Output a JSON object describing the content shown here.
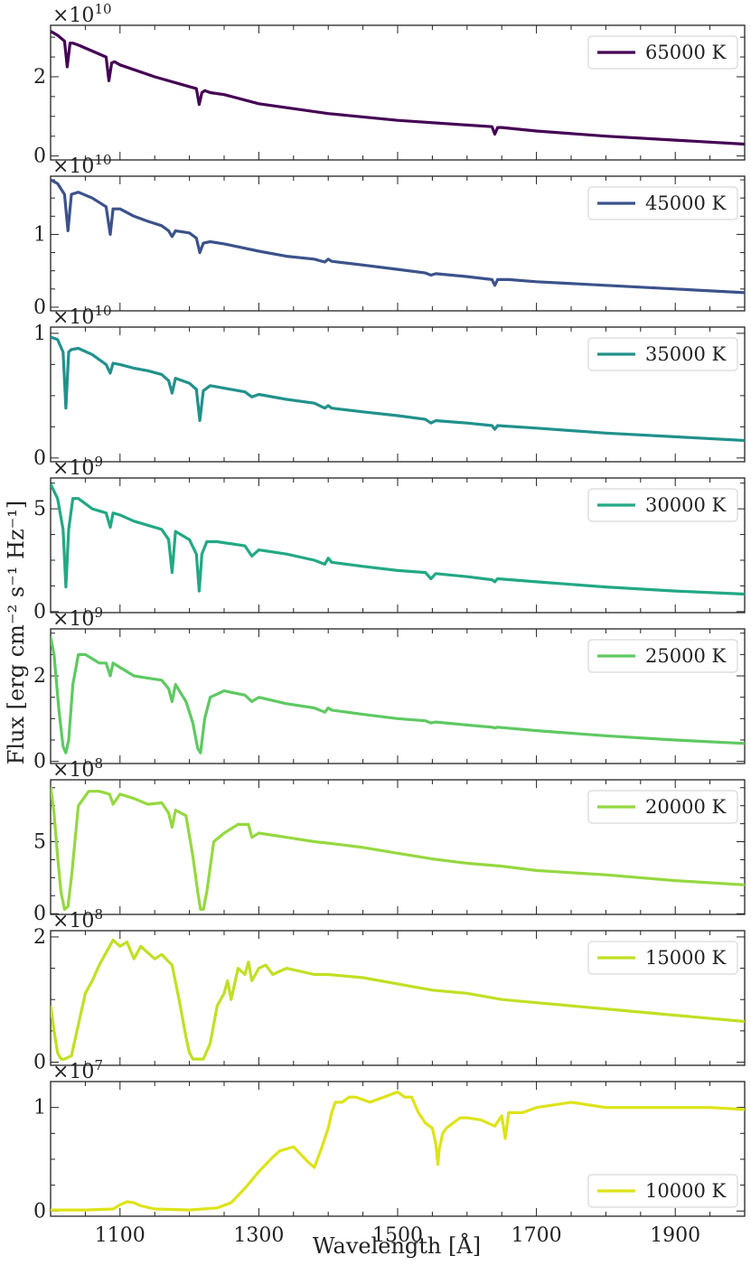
{
  "figure": {
    "xlabel": "Wavelength [Å]",
    "ylabel": "Flux [erg cm⁻² s⁻¹ Hz⁻¹]",
    "xlim": [
      1000,
      2000
    ],
    "xticks": [
      1100,
      1300,
      1500,
      1700,
      1900
    ],
    "legend_position": "upper right (bottom panel: lower right)"
  },
  "chart_data": [
    {
      "type": "line",
      "series": [
        {
          "name": "65000 K",
          "color": "#440154"
        }
      ],
      "ylim": [
        -0.1,
        3.3
      ],
      "yticks": [
        0,
        2
      ],
      "offset_text": "×10^10",
      "exp": "10",
      "legend_loc": "upper right",
      "x": [
        1000,
        1010,
        1020,
        1024,
        1028,
        1032,
        1040,
        1060,
        1080,
        1084,
        1088,
        1092,
        1100,
        1150,
        1200,
        1210,
        1214,
        1218,
        1222,
        1230,
        1250,
        1300,
        1400,
        1500,
        1600,
        1636,
        1640,
        1644,
        1650,
        1700,
        1800,
        1900,
        2000
      ],
      "values": [
        3.15,
        3.05,
        2.9,
        2.25,
        2.85,
        2.85,
        2.8,
        2.65,
        2.5,
        1.9,
        2.35,
        2.38,
        2.3,
        2.0,
        1.75,
        1.7,
        1.3,
        1.6,
        1.65,
        1.6,
        1.55,
        1.32,
        1.07,
        0.9,
        0.78,
        0.74,
        0.55,
        0.72,
        0.72,
        0.63,
        0.5,
        0.4,
        0.3
      ]
    },
    {
      "type": "line",
      "series": [
        {
          "name": "45000 K",
          "color": "#3b528b"
        }
      ],
      "ylim": [
        -0.05,
        1.8
      ],
      "yticks": [
        0,
        1
      ],
      "offset_text": "×10^10",
      "exp": "10",
      "legend_loc": "upper right",
      "x": [
        1000,
        1010,
        1020,
        1025,
        1030,
        1040,
        1060,
        1080,
        1086,
        1090,
        1100,
        1120,
        1140,
        1160,
        1170,
        1175,
        1180,
        1200,
        1210,
        1215,
        1220,
        1230,
        1250,
        1300,
        1340,
        1380,
        1395,
        1400,
        1405,
        1450,
        1500,
        1540,
        1548,
        1555,
        1600,
        1636,
        1640,
        1644,
        1660,
        1700,
        1800,
        1900,
        2000
      ],
      "values": [
        1.75,
        1.7,
        1.55,
        1.05,
        1.55,
        1.58,
        1.5,
        1.38,
        1.0,
        1.35,
        1.35,
        1.25,
        1.18,
        1.12,
        1.05,
        0.97,
        1.05,
        1.02,
        0.95,
        0.75,
        0.88,
        0.9,
        0.87,
        0.77,
        0.7,
        0.66,
        0.62,
        0.66,
        0.63,
        0.58,
        0.52,
        0.47,
        0.44,
        0.46,
        0.42,
        0.38,
        0.3,
        0.38,
        0.38,
        0.35,
        0.3,
        0.25,
        0.2
      ]
    },
    {
      "type": "line",
      "series": [
        {
          "name": "35000 K",
          "color": "#21918c"
        }
      ],
      "ylim": [
        -0.03,
        1.05
      ],
      "yticks": [
        0,
        1
      ],
      "offset_text": "×10^10",
      "exp": "10",
      "legend_loc": "upper right",
      "x": [
        1000,
        1010,
        1018,
        1022,
        1026,
        1030,
        1040,
        1060,
        1080,
        1086,
        1090,
        1100,
        1120,
        1140,
        1160,
        1170,
        1175,
        1180,
        1200,
        1210,
        1215,
        1220,
        1230,
        1250,
        1280,
        1290,
        1300,
        1340,
        1380,
        1395,
        1400,
        1405,
        1450,
        1500,
        1540,
        1548,
        1555,
        1600,
        1636,
        1640,
        1644,
        1700,
        1800,
        1900,
        2000
      ],
      "values": [
        0.97,
        0.95,
        0.85,
        0.4,
        0.85,
        0.87,
        0.88,
        0.83,
        0.75,
        0.68,
        0.76,
        0.75,
        0.72,
        0.7,
        0.67,
        0.62,
        0.52,
        0.64,
        0.6,
        0.55,
        0.3,
        0.54,
        0.58,
        0.56,
        0.53,
        0.49,
        0.51,
        0.47,
        0.44,
        0.4,
        0.42,
        0.4,
        0.37,
        0.34,
        0.31,
        0.28,
        0.3,
        0.28,
        0.26,
        0.23,
        0.26,
        0.24,
        0.2,
        0.17,
        0.14
      ]
    },
    {
      "type": "line",
      "series": [
        {
          "name": "30000 K",
          "color": "#22a884"
        }
      ],
      "ylim": [
        -0.05,
        6.5
      ],
      "yticks": [
        0,
        5
      ],
      "offset_text": "×10^9",
      "exp": "9",
      "legend_loc": "upper right",
      "x": [
        1000,
        1010,
        1018,
        1022,
        1026,
        1032,
        1040,
        1060,
        1080,
        1086,
        1090,
        1100,
        1120,
        1140,
        1160,
        1170,
        1175,
        1180,
        1200,
        1210,
        1214,
        1218,
        1225,
        1240,
        1280,
        1290,
        1300,
        1340,
        1380,
        1395,
        1400,
        1405,
        1450,
        1500,
        1540,
        1548,
        1555,
        1600,
        1636,
        1640,
        1644,
        1700,
        1800,
        1900,
        2000
      ],
      "values": [
        6.2,
        5.5,
        4.0,
        1.2,
        4.0,
        5.5,
        5.5,
        5.0,
        4.8,
        4.1,
        4.8,
        4.7,
        4.4,
        4.2,
        4.0,
        3.5,
        1.9,
        3.9,
        3.5,
        2.8,
        1.0,
        2.8,
        3.4,
        3.4,
        3.2,
        2.7,
        3.0,
        2.8,
        2.5,
        2.3,
        2.6,
        2.4,
        2.2,
        2.0,
        1.9,
        1.6,
        1.85,
        1.7,
        1.55,
        1.45,
        1.6,
        1.45,
        1.2,
        1.0,
        0.85
      ]
    },
    {
      "type": "line",
      "series": [
        {
          "name": "25000 K",
          "color": "#5ec962"
        }
      ],
      "ylim": [
        -0.05,
        3.1
      ],
      "yticks": [
        0,
        2
      ],
      "offset_text": "×10^9",
      "exp": "9",
      "legend_loc": "upper right",
      "x": [
        1000,
        1005,
        1012,
        1018,
        1022,
        1026,
        1032,
        1040,
        1050,
        1070,
        1080,
        1086,
        1090,
        1100,
        1120,
        1140,
        1160,
        1170,
        1175,
        1180,
        1195,
        1205,
        1212,
        1216,
        1222,
        1230,
        1250,
        1280,
        1290,
        1300,
        1340,
        1380,
        1395,
        1400,
        1405,
        1450,
        1500,
        1540,
        1548,
        1555,
        1600,
        1636,
        1640,
        1644,
        1700,
        1800,
        1900,
        2000
      ],
      "values": [
        2.9,
        2.5,
        1.2,
        0.35,
        0.2,
        0.5,
        1.8,
        2.5,
        2.5,
        2.3,
        2.3,
        2.0,
        2.3,
        2.2,
        2.0,
        1.95,
        1.9,
        1.7,
        1.4,
        1.8,
        1.4,
        0.9,
        0.3,
        0.2,
        1.0,
        1.5,
        1.65,
        1.55,
        1.4,
        1.5,
        1.35,
        1.25,
        1.15,
        1.25,
        1.2,
        1.1,
        1.0,
        0.95,
        0.9,
        0.92,
        0.85,
        0.8,
        0.78,
        0.8,
        0.72,
        0.6,
        0.5,
        0.42
      ]
    },
    {
      "type": "line",
      "series": [
        {
          "name": "20000 K",
          "color": "#95d840"
        }
      ],
      "ylim": [
        -0.05,
        9.3
      ],
      "yticks": [
        0,
        5
      ],
      "offset_text": "×10^8",
      "exp": "8",
      "legend_loc": "upper right",
      "x": [
        1000,
        1005,
        1010,
        1015,
        1020,
        1025,
        1030,
        1040,
        1055,
        1070,
        1085,
        1090,
        1100,
        1120,
        1140,
        1160,
        1170,
        1175,
        1180,
        1195,
        1205,
        1212,
        1216,
        1220,
        1225,
        1235,
        1250,
        1270,
        1285,
        1290,
        1300,
        1340,
        1380,
        1400,
        1450,
        1500,
        1550,
        1600,
        1650,
        1700,
        1800,
        1900,
        2000
      ],
      "values": [
        8.8,
        7.0,
        4.0,
        1.5,
        0.3,
        0.5,
        2.5,
        7.5,
        8.5,
        8.5,
        8.3,
        7.6,
        8.3,
        8.0,
        7.6,
        7.7,
        7.0,
        6.0,
        7.2,
        6.8,
        4.0,
        1.5,
        0.3,
        0.3,
        1.5,
        5.0,
        5.6,
        6.2,
        6.2,
        5.3,
        5.6,
        5.3,
        5.0,
        4.9,
        4.6,
        4.2,
        3.8,
        3.5,
        3.3,
        3.0,
        2.7,
        2.3,
        2.0
      ]
    },
    {
      "type": "line",
      "series": [
        {
          "name": "15000 K",
          "color": "#c2df23"
        }
      ],
      "ylim": [
        -0.05,
        2.1
      ],
      "yticks": [
        0,
        2
      ],
      "offset_text": "×10^8",
      "exp": "8",
      "legend_loc": "upper right",
      "x": [
        1000,
        1005,
        1010,
        1015,
        1020,
        1030,
        1040,
        1050,
        1060,
        1070,
        1080,
        1090,
        1100,
        1110,
        1120,
        1130,
        1140,
        1150,
        1160,
        1175,
        1185,
        1195,
        1200,
        1205,
        1210,
        1220,
        1230,
        1240,
        1250,
        1255,
        1260,
        1270,
        1280,
        1285,
        1290,
        1300,
        1310,
        1320,
        1330,
        1340,
        1380,
        1400,
        1450,
        1500,
        1550,
        1600,
        1650,
        1700,
        1800,
        1900,
        2000
      ],
      "values": [
        0.9,
        0.5,
        0.15,
        0.05,
        0.05,
        0.1,
        0.6,
        1.1,
        1.3,
        1.55,
        1.75,
        1.95,
        1.85,
        1.92,
        1.65,
        1.85,
        1.75,
        1.65,
        1.72,
        1.55,
        1.0,
        0.4,
        0.15,
        0.05,
        0.05,
        0.05,
        0.3,
        0.9,
        1.1,
        1.3,
        1.0,
        1.5,
        1.4,
        1.6,
        1.3,
        1.5,
        1.55,
        1.4,
        1.45,
        1.5,
        1.4,
        1.4,
        1.35,
        1.25,
        1.15,
        1.1,
        1.0,
        0.95,
        0.85,
        0.75,
        0.65
      ]
    },
    {
      "type": "line",
      "series": [
        {
          "name": "10000 K",
          "color": "#dde318"
        }
      ],
      "ylim": [
        -0.05,
        1.25
      ],
      "yticks": [
        0,
        1
      ],
      "offset_text": "×10^7",
      "exp": "7",
      "legend_loc": "lower right",
      "x": [
        1000,
        1050,
        1090,
        1100,
        1110,
        1120,
        1130,
        1150,
        1200,
        1240,
        1260,
        1270,
        1280,
        1290,
        1300,
        1310,
        1320,
        1330,
        1340,
        1350,
        1360,
        1370,
        1380,
        1390,
        1400,
        1405,
        1410,
        1420,
        1430,
        1440,
        1460,
        1480,
        1500,
        1510,
        1520,
        1530,
        1540,
        1550,
        1555,
        1558,
        1560,
        1565,
        1570,
        1580,
        1590,
        1600,
        1620,
        1640,
        1650,
        1655,
        1660,
        1680,
        1700,
        1750,
        1800,
        1850,
        1900,
        1950,
        2000
      ],
      "values": [
        0.01,
        0.01,
        0.02,
        0.06,
        0.09,
        0.08,
        0.05,
        0.02,
        0.01,
        0.03,
        0.08,
        0.15,
        0.22,
        0.3,
        0.38,
        0.45,
        0.52,
        0.58,
        0.6,
        0.62,
        0.55,
        0.48,
        0.42,
        0.6,
        0.8,
        0.95,
        1.05,
        1.05,
        1.1,
        1.1,
        1.05,
        1.1,
        1.15,
        1.1,
        1.1,
        0.95,
        0.85,
        0.8,
        0.65,
        0.45,
        0.6,
        0.75,
        0.8,
        0.85,
        0.9,
        0.9,
        0.88,
        0.82,
        0.92,
        0.7,
        0.95,
        0.95,
        1.0,
        1.05,
        1.0,
        1.0,
        1.0,
        1.0,
        0.98
      ]
    }
  ]
}
